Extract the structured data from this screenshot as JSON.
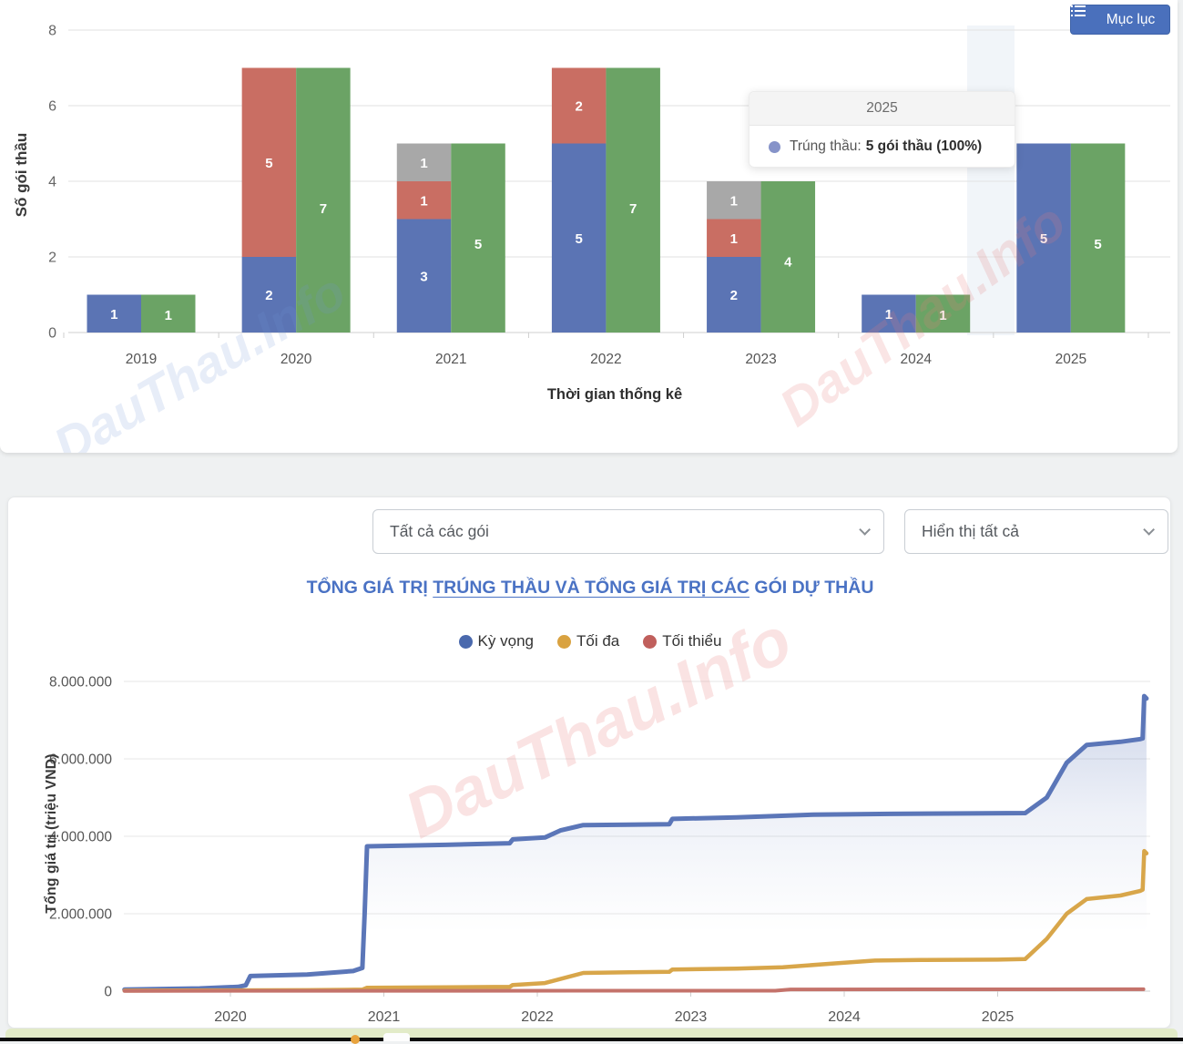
{
  "app": {
    "toc_button_label": "Mục lục",
    "watermark_text": "DauThau.Info"
  },
  "filters": {
    "package_select_value": "Tất cả các gói",
    "display_select_value": "Hiển thị tất cả"
  },
  "section2_title": {
    "pre": "TỔNG GIÁ TRỊ ",
    "link": "TRÚNG THẦU VÀ TỔNG GIÁ TRỊ CÁC",
    "post": " GÓI DỰ THẦU"
  },
  "tooltip": {
    "title": "2025",
    "series_label": "Trúng thầu:",
    "value": "5 gói thầu (100%)",
    "dot_color": "#8693c9"
  },
  "chart_data": [
    {
      "type": "bar",
      "title": "",
      "categories": [
        "2019",
        "2020",
        "2021",
        "2022",
        "2023",
        "2024",
        "2025"
      ],
      "series": [
        {
          "name": "Trúng thầu",
          "color": "#5b74b4",
          "bar": "left",
          "values": [
            1,
            2,
            3,
            5,
            2,
            1,
            5
          ]
        },
        {
          "name": "series-red",
          "color": "#c96e63",
          "bar": "left",
          "values": [
            0,
            5,
            1,
            2,
            1,
            0,
            0
          ]
        },
        {
          "name": "series-gray",
          "color": "#a8a8a8",
          "bar": "left",
          "values": [
            0,
            0,
            1,
            0,
            1,
            0,
            0
          ]
        },
        {
          "name": "series-green",
          "color": "#6ba365",
          "bar": "right",
          "values": [
            1,
            7,
            5,
            7,
            4,
            1,
            5
          ]
        }
      ],
      "xlabel": "Thời gian thống kê",
      "ylabel": "Số gói thầu",
      "ylim": [
        0,
        8
      ],
      "yticks": [
        0,
        2,
        4,
        6,
        8
      ],
      "grid": true,
      "hover_band_category": "2025"
    },
    {
      "type": "line",
      "title": "TỔNG GIÁ TRỊ TRÚNG THẦU VÀ TỔNG GIÁ TRỊ CÁC GÓI DỰ THẦU",
      "xlabel": "",
      "ylabel": "Tổng giá trị (triệu VND)",
      "ylim": [
        0,
        8000000
      ],
      "ytick_values": [
        0,
        2000000,
        4000000,
        6000000,
        8000000
      ],
      "ytick_labels": [
        "0",
        "2.000.000",
        "4.000.000",
        "6.000.000",
        "8.000.000"
      ],
      "xtick_labels": [
        "2020",
        "2021",
        "2022",
        "2023",
        "2024",
        "2025"
      ],
      "legend_position": "top",
      "legend_items": [
        {
          "label": "Kỳ vọng",
          "color": "#4a69ad"
        },
        {
          "label": "Tối đa",
          "color": "#d9a240"
        },
        {
          "label": "Tối thiểu",
          "color": "#c05f5c"
        }
      ],
      "series": [
        {
          "name": "Kỳ vọng",
          "color": "#5b76b8",
          "width": 5,
          "area_fill": true,
          "points": [
            [
              2019.31,
              40000
            ],
            [
              2019.8,
              70000
            ],
            [
              2020.05,
              110000
            ],
            [
              2020.1,
              150000
            ],
            [
              2020.13,
              390000
            ],
            [
              2020.5,
              430000
            ],
            [
              2020.8,
              520000
            ],
            [
              2020.86,
              600000
            ],
            [
              2020.875,
              2000000
            ],
            [
              2020.89,
              3740000
            ],
            [
              2021.4,
              3780000
            ],
            [
              2021.82,
              3820000
            ],
            [
              2021.84,
              3920000
            ],
            [
              2022.05,
              3970000
            ],
            [
              2022.15,
              4150000
            ],
            [
              2022.3,
              4290000
            ],
            [
              2022.6,
              4300000
            ],
            [
              2022.86,
              4310000
            ],
            [
              2022.88,
              4450000
            ],
            [
              2023.3,
              4490000
            ],
            [
              2023.8,
              4560000
            ],
            [
              2024.3,
              4580000
            ],
            [
              2024.8,
              4590000
            ],
            [
              2025.18,
              4600000
            ],
            [
              2025.32,
              5000000
            ],
            [
              2025.45,
              5900000
            ],
            [
              2025.58,
              6360000
            ],
            [
              2025.8,
              6440000
            ],
            [
              2025.93,
              6510000
            ],
            [
              2025.945,
              6530000
            ],
            [
              2025.955,
              7620000
            ],
            [
              2025.97,
              7560000
            ]
          ]
        },
        {
          "name": "Tối đa",
          "color": "#d8a64a",
          "width": 4.5,
          "area_fill": false,
          "points": [
            [
              2019.31,
              15000
            ],
            [
              2020.5,
              25000
            ],
            [
              2020.86,
              40000
            ],
            [
              2020.89,
              90000
            ],
            [
              2021.4,
              100000
            ],
            [
              2021.82,
              110000
            ],
            [
              2021.84,
              160000
            ],
            [
              2022.05,
              210000
            ],
            [
              2022.3,
              470000
            ],
            [
              2022.6,
              490000
            ],
            [
              2022.86,
              500000
            ],
            [
              2022.88,
              560000
            ],
            [
              2023.3,
              580000
            ],
            [
              2023.6,
              620000
            ],
            [
              2023.95,
              720000
            ],
            [
              2024.2,
              790000
            ],
            [
              2024.5,
              805000
            ],
            [
              2025.0,
              815000
            ],
            [
              2025.18,
              830000
            ],
            [
              2025.32,
              1350000
            ],
            [
              2025.45,
              2000000
            ],
            [
              2025.58,
              2380000
            ],
            [
              2025.8,
              2470000
            ],
            [
              2025.93,
              2590000
            ],
            [
              2025.945,
              2620000
            ],
            [
              2025.955,
              3620000
            ],
            [
              2025.97,
              3560000
            ]
          ]
        },
        {
          "name": "Tối thiểu",
          "color": "#c4736b",
          "width": 4,
          "area_fill": false,
          "points": [
            [
              2019.31,
              8000
            ],
            [
              2023.55,
              12000
            ],
            [
              2023.65,
              45000
            ],
            [
              2025.95,
              50000
            ]
          ]
        }
      ]
    }
  ]
}
